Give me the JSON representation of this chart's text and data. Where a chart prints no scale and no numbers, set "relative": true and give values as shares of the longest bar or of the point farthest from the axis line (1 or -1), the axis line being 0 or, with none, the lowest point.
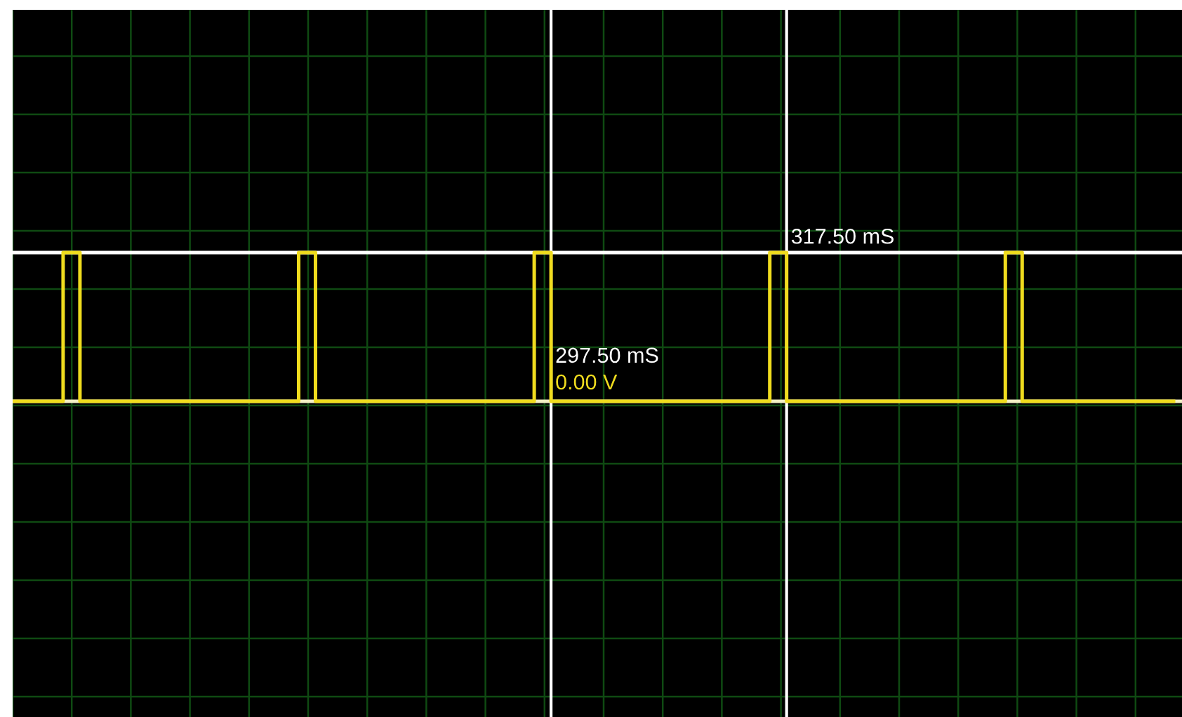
{
  "chart_data": {
    "type": "step",
    "relative": true,
    "grid": true,
    "categories": [
      null,
      null,
      null,
      null,
      null,
      null,
      null,
      null,
      null,
      null,
      null,
      null,
      null,
      null,
      null,
      null,
      null,
      null,
      null,
      null,
      null,
      null,
      null,
      null,
      null,
      null,
      null,
      null,
      null,
      null,
      null,
      null,
      null,
      null,
      null,
      null,
      null,
      null,
      null,
      null,
      null,
      null,
      null,
      null,
      null,
      null,
      null,
      null,
      null,
      null,
      null,
      null,
      null,
      null,
      null,
      null,
      null,
      null,
      null,
      null,
      null,
      null,
      null,
      null,
      null,
      null,
      null,
      null,
      null,
      null
    ],
    "series": [
      {
        "color": "#f0dc1e",
        "values": [
          0,
          0,
          0,
          1,
          0,
          0,
          0,
          0,
          0,
          0,
          0,
          0,
          0,
          0,
          0,
          0,
          0,
          1,
          0,
          0,
          0,
          0,
          0,
          0,
          0,
          0,
          0,
          0,
          0,
          0,
          0,
          1,
          0,
          0,
          0,
          0,
          0,
          0,
          0,
          0,
          0,
          0,
          0,
          0,
          0,
          1,
          0,
          0,
          0,
          0,
          0,
          0,
          0,
          0,
          0,
          0,
          0,
          0,
          0,
          1,
          0,
          0,
          0,
          0,
          0,
          0,
          0,
          0,
          0,
          0
        ]
      }
    ],
    "annotations": [
      "297.50 mS",
      "317.50 mS"
    ],
    "ref_lines": [
      {
        "axis": "y",
        "value": 1,
        "color": "#ffffff"
      },
      {
        "axis": "y",
        "value": 0,
        "label": "0.00 V",
        "color": "#f3efc4"
      }
    ]
  }
}
